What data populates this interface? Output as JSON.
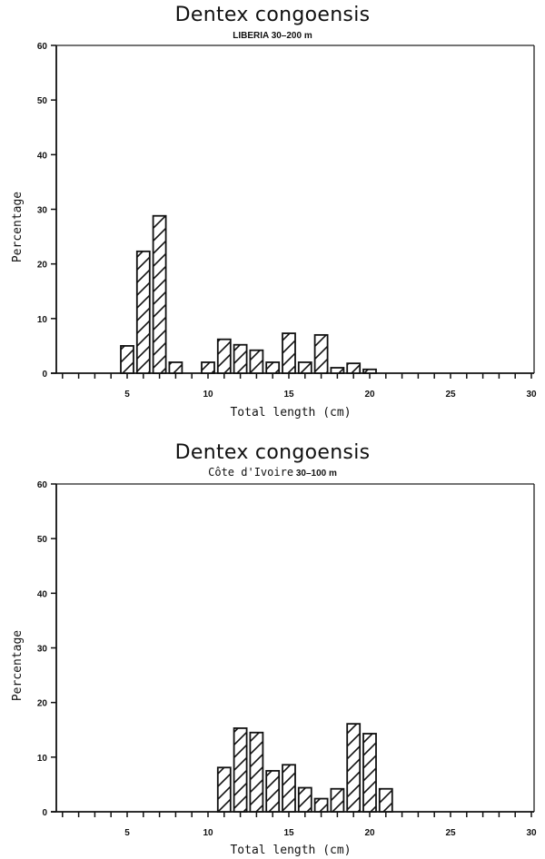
{
  "charts": [
    {
      "title": "Dentex congoensis",
      "subtitle_location": "LIBERIA",
      "subtitle_depth": "30–200 m",
      "xlabel": "Total length (cm)",
      "ylabel": "Percentage"
    },
    {
      "title": "Dentex congoensis",
      "subtitle_location": "Côte d'Ivoire",
      "subtitle_depth": "30–100 m",
      "xlabel": "Total length (cm)",
      "ylabel": "Percentage"
    }
  ],
  "chart_data": [
    {
      "type": "bar",
      "title": "Dentex congoensis",
      "subtitle": "LIBERIA 30-200 m",
      "xlabel": "Total length (cm)",
      "ylabel": "Percentage",
      "xlim": [
        0,
        30
      ],
      "ylim": [
        0,
        60
      ],
      "xticks": [
        5,
        10,
        15,
        20,
        25,
        30
      ],
      "yticks": [
        0,
        10,
        20,
        30,
        40,
        50,
        60
      ],
      "grid": false,
      "bar_style": "hatched diagonal, black outline, white fill",
      "categories": [
        5,
        6,
        7,
        8,
        10,
        11,
        12,
        13,
        14,
        15,
        16,
        17,
        18,
        19,
        20
      ],
      "values": [
        5.0,
        22.3,
        28.8,
        2.0,
        2.0,
        6.2,
        5.2,
        4.2,
        2.0,
        7.3,
        2.0,
        7.0,
        1.0,
        1.8,
        0.7
      ]
    },
    {
      "type": "bar",
      "title": "Dentex congoensis",
      "subtitle": "Côte d'Ivoire 30-100 m",
      "xlabel": "Total length (cm)",
      "ylabel": "Percentage",
      "xlim": [
        0,
        30
      ],
      "ylim": [
        0,
        60
      ],
      "xticks": [
        5,
        10,
        15,
        20,
        25,
        30
      ],
      "yticks": [
        0,
        10,
        20,
        30,
        40,
        50,
        60
      ],
      "grid": false,
      "bar_style": "hatched diagonal, black outline, white fill",
      "categories": [
        11,
        12,
        13,
        14,
        15,
        16,
        17,
        18,
        19,
        20,
        21
      ],
      "values": [
        8.1,
        15.3,
        14.5,
        7.5,
        8.6,
        4.4,
        2.4,
        4.2,
        16.1,
        14.3,
        4.2
      ]
    }
  ]
}
